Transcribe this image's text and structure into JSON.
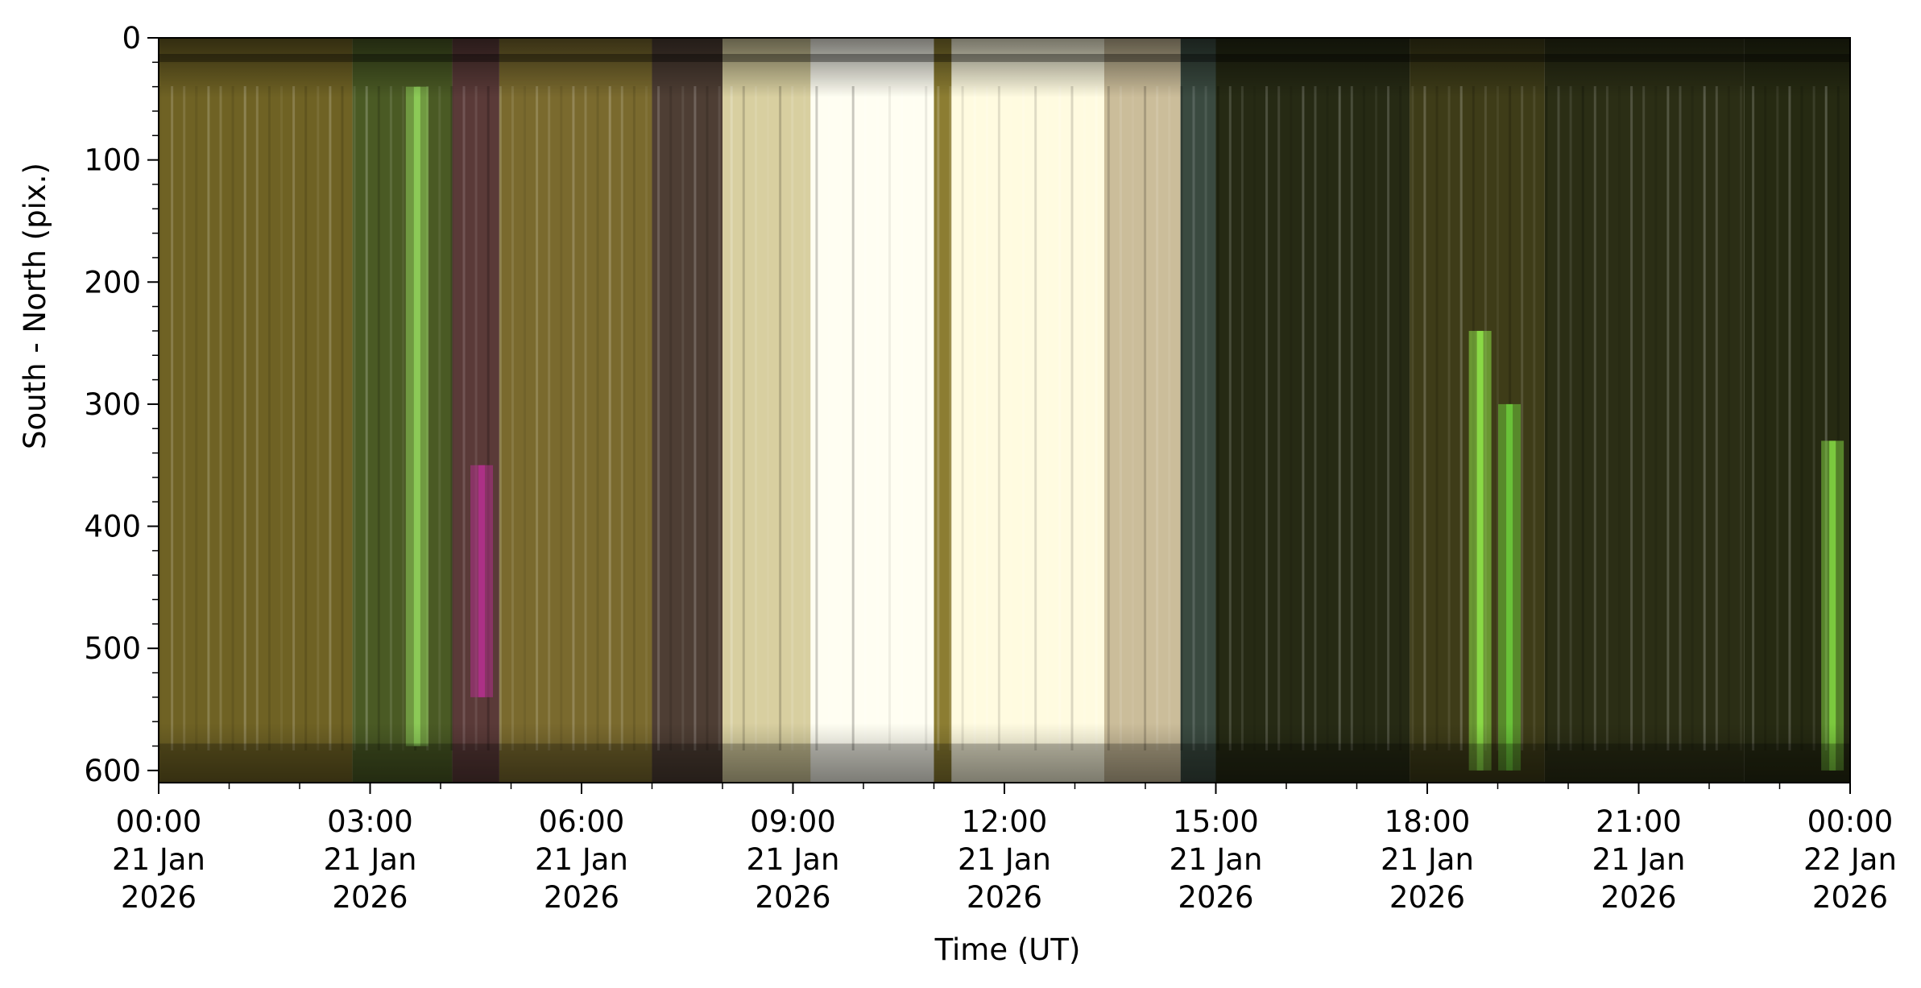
{
  "chart_data": {
    "type": "heatmap",
    "title": "",
    "xlabel": "Time (UT)",
    "ylabel": "South - North (pix.)",
    "x_range": [
      "2026-01-21T00:00",
      "2026-01-22T00:00"
    ],
    "y_range": [
      0,
      610
    ],
    "y_inverted": true,
    "grid": false,
    "x_ticks": [
      {
        "value": "2026-01-21T00:00",
        "lines": [
          "00:00",
          "21 Jan",
          "2026"
        ]
      },
      {
        "value": "2026-01-21T03:00",
        "lines": [
          "03:00",
          "21 Jan",
          "2026"
        ]
      },
      {
        "value": "2026-01-21T06:00",
        "lines": [
          "06:00",
          "21 Jan",
          "2026"
        ]
      },
      {
        "value": "2026-01-21T09:00",
        "lines": [
          "09:00",
          "21 Jan",
          "2026"
        ]
      },
      {
        "value": "2026-01-21T12:00",
        "lines": [
          "12:00",
          "21 Jan",
          "2026"
        ]
      },
      {
        "value": "2026-01-21T15:00",
        "lines": [
          "15:00",
          "21 Jan",
          "2026"
        ]
      },
      {
        "value": "2026-01-21T18:00",
        "lines": [
          "18:00",
          "21 Jan",
          "2026"
        ]
      },
      {
        "value": "2026-01-21T21:00",
        "lines": [
          "21:00",
          "21 Jan",
          "2026"
        ]
      },
      {
        "value": "2026-01-22T00:00",
        "lines": [
          "00:00",
          "22 Jan",
          "2026"
        ]
      }
    ],
    "y_ticks": [
      0,
      100,
      200,
      300,
      400,
      500,
      600
    ],
    "bands": [
      {
        "t0": "2026-01-21T00:00",
        "t1": "2026-01-21T02:45",
        "color": "#6f6224"
      },
      {
        "t0": "2026-01-21T02:45",
        "t1": "2026-01-21T04:10",
        "color": "#4a5a24"
      },
      {
        "t0": "2026-01-21T04:10",
        "t1": "2026-01-21T04:50",
        "color": "#5a3a38"
      },
      {
        "t0": "2026-01-21T04:50",
        "t1": "2026-01-21T07:00",
        "color": "#7a6a2e"
      },
      {
        "t0": "2026-01-21T07:00",
        "t1": "2026-01-21T08:00",
        "color": "#4e3e34"
      },
      {
        "t0": "2026-01-21T08:00",
        "t1": "2026-01-21T09:15",
        "color": "#d8cfa0"
      },
      {
        "t0": "2026-01-21T09:15",
        "t1": "2026-01-21T11:00",
        "color": "#fffef2"
      },
      {
        "t0": "2026-01-21T11:00",
        "t1": "2026-01-21T11:15",
        "color": "#8c7d32"
      },
      {
        "t0": "2026-01-21T11:15",
        "t1": "2026-01-21T13:25",
        "color": "#fffbe0"
      },
      {
        "t0": "2026-01-21T13:25",
        "t1": "2026-01-21T14:30",
        "color": "#cbbd9a"
      },
      {
        "t0": "2026-01-21T14:30",
        "t1": "2026-01-21T15:00",
        "color": "#3a4a40"
      },
      {
        "t0": "2026-01-21T15:00",
        "t1": "2026-01-21T17:45",
        "color": "#262a14"
      },
      {
        "t0": "2026-01-21T17:45",
        "t1": "2026-01-21T19:40",
        "color": "#3e3c18"
      },
      {
        "t0": "2026-01-21T19:40",
        "t1": "2026-01-21T22:30",
        "color": "#2b2e15"
      },
      {
        "t0": "2026-01-21T22:30",
        "t1": "2026-01-22T00:00",
        "color": "#262a12"
      }
    ],
    "streaks": [
      {
        "t": "2026-01-21T03:40",
        "y0": 40,
        "y1": 580,
        "color": "#8fcf5a"
      },
      {
        "t": "2026-01-21T04:35",
        "y0": 350,
        "y1": 540,
        "color": "#b0308a"
      },
      {
        "t": "2026-01-21T18:45",
        "y0": 240,
        "y1": 600,
        "color": "#8ee048"
      },
      {
        "t": "2026-01-21T19:10",
        "y0": 300,
        "y1": 600,
        "color": "#6cc83a"
      },
      {
        "t": "2026-01-21T23:45",
        "y0": 330,
        "y1": 600,
        "color": "#7fd040"
      }
    ]
  }
}
